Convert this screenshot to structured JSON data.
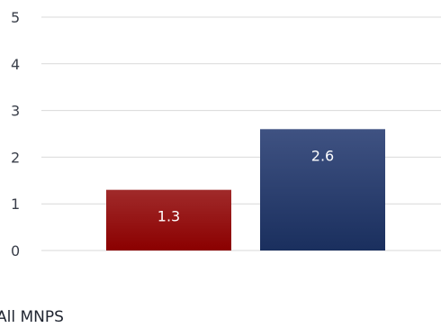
{
  "chart_data": {
    "type": "bar",
    "categories": [
      "All MNPS"
    ],
    "series": [
      {
        "values": [
          1.3
        ],
        "color": "#8b0000",
        "color_top": "#a02a2a"
      },
      {
        "values": [
          2.6
        ],
        "color": "#1a2f5e",
        "color_top": "#3f5282"
      }
    ],
    "ylim": [
      0,
      5
    ],
    "yticks": [
      0,
      1,
      2,
      3,
      4,
      5
    ],
    "grid": true,
    "data_labels": [
      "1.3",
      "2.6"
    ]
  }
}
